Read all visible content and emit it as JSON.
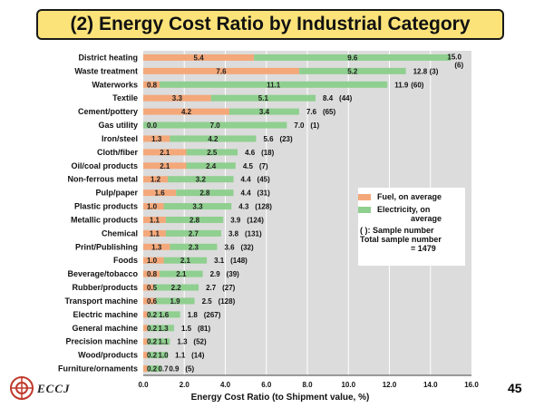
{
  "title": "(2) Energy Cost Ratio by Industrial Category",
  "page_number": "45",
  "logo_text": "ECCJ",
  "legend": {
    "fuel": "Fuel, on average",
    "electricity_line1": "Electricity, on",
    "electricity_line2": "average",
    "note_line1": "( ): Sample number",
    "note_line2": "Total sample number",
    "note_line3": "= 1479"
  },
  "colors": {
    "fuel": "#f4a87a",
    "electricity": "#8fcf8f",
    "plot_bg": "#dcdcdc"
  },
  "chart_data": {
    "type": "bar",
    "orientation": "horizontal",
    "stacked": true,
    "title": "(2) Energy Cost Ratio by Industrial Category",
    "xlabel": "Energy Cost Ratio (to Shipment value, %)",
    "ylabel": "",
    "xlim": [
      0,
      16
    ],
    "xticks": [
      "0.0",
      "2.0",
      "4.0",
      "6.0",
      "8.0",
      "10.0",
      "12.0",
      "14.0",
      "16.0"
    ],
    "categories": [
      "District heating",
      "Waste treatment",
      "Waterworks",
      "Textile",
      "Cement/pottery",
      "Gas utility",
      "Iron/steel",
      "Cloth/fiber",
      "Oil/coal products",
      "Non-ferrous metal",
      "Pulp/paper",
      "Plastic products",
      "Metallic products",
      "Chemical",
      "Print/Publishing",
      "Foods",
      "Beverage/tobacco",
      "Rubber/products",
      "Transport machine",
      "Electric machine",
      "General machine",
      "Precision machine",
      "Wood/products",
      "Furniture/ornaments"
    ],
    "series": [
      {
        "name": "Fuel, on average",
        "values": [
          5.4,
          7.6,
          0.8,
          3.3,
          4.2,
          0.0,
          1.3,
          2.1,
          2.1,
          1.2,
          1.6,
          1.0,
          1.1,
          1.1,
          1.3,
          1.0,
          0.8,
          0.5,
          0.6,
          0.2,
          0.2,
          0.2,
          0.2,
          0.2
        ],
        "labels": [
          "5.4",
          "7.6",
          "0.8",
          "3.3",
          "4.2",
          "0.0",
          "1.3",
          "2.1",
          "2.1",
          "1.2",
          "1.6",
          "1.0",
          "1.1",
          "1.1",
          "1.3",
          "1.0",
          "0.8",
          "0.5",
          "0.6",
          "0.2",
          "0.2",
          "0.2",
          "0.2",
          "0.2"
        ]
      },
      {
        "name": "Electricity, on average",
        "values": [
          9.6,
          5.2,
          11.1,
          5.1,
          3.4,
          7.0,
          4.2,
          2.5,
          2.4,
          3.2,
          2.8,
          3.3,
          2.8,
          2.7,
          2.3,
          2.1,
          2.1,
          2.2,
          1.9,
          1.6,
          1.3,
          1.1,
          1.0,
          0.7
        ],
        "labels": [
          "9.6",
          "5.2",
          "11.1",
          "5.1",
          "3.4",
          "7.0",
          "4.2",
          "2.5",
          "2.4",
          "3.2",
          "2.8",
          "3.3",
          "2.8",
          "2.7",
          "2.3",
          "2.1",
          "2.1",
          "2.2",
          "1.9",
          "1.6",
          "1.3",
          "1.1",
          "1.0",
          "0.7"
        ]
      }
    ],
    "totals": [
      "15.0",
      "12.8",
      "11.9",
      "8.4",
      "7.6",
      "7.0",
      "5.6",
      "4.6",
      "4.5",
      "4.4",
      "4.4",
      "4.3",
      "3.9",
      "3.8",
      "3.6",
      "3.1",
      "2.9",
      "2.7",
      "2.5",
      "1.8",
      "1.5",
      "1.3",
      "1.1",
      "0.9"
    ],
    "samples": [
      "(6)",
      "(3)",
      "(60)",
      "(44)",
      "(65)",
      "(1)",
      "(23)",
      "(18)",
      "(7)",
      "(45)",
      "(31)",
      "(128)",
      "(124)",
      "(131)",
      "(32)",
      "(148)",
      "(39)",
      "(27)",
      "(128)",
      "(267)",
      "(81)",
      "(52)",
      "(14)",
      "(5)"
    ]
  }
}
